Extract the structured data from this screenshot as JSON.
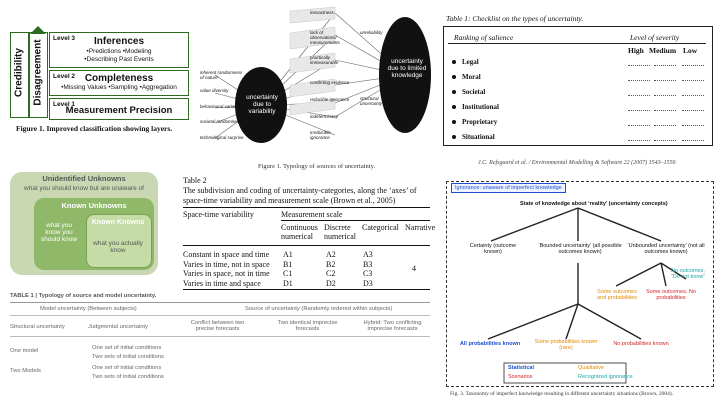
{
  "panel_layers": {
    "credibility": "Credibility",
    "disagreement": "Disagreement",
    "levels": [
      {
        "tag": "Level 3",
        "title": "Inferences",
        "items": "•Predictions  •Modeling",
        "items2": "•Describing Past Events"
      },
      {
        "tag": "Level 2",
        "title": "Completeness",
        "items": "•Missing Values  •Sampling  •Aggregation",
        "items2": ""
      },
      {
        "tag": "Level 1",
        "title": "Measurement Precision",
        "items": "",
        "items2": ""
      }
    ],
    "caption": "Figure 1. Improved classification showing layers."
  },
  "panel_typology": {
    "left_circle": "uncertainty due to variability",
    "right_circle": "uncertainty due to limited knowledge",
    "left_labels": [
      "inherent randomness of nature",
      "value diversity",
      "behavioural variability",
      "societal randomness",
      "technological surprise"
    ],
    "right_labels": [
      "inexactness",
      "lack of observations/ measurements",
      "practically immeasurable",
      "conflicting evidence",
      "reducible ignorance",
      "indeterminacy",
      "irreducible ignorance"
    ],
    "side_labels": [
      "unreliability",
      "structural uncertainty"
    ],
    "caption": "Figure 1. Typology of sources of uncertainty."
  },
  "panel_checklist": {
    "title": "Table 1: Checklist on the types of uncertainty.",
    "col_ranking": "Ranking of salience",
    "col_severity": "Level of severity",
    "severity_levels": [
      "High",
      "Medium",
      "Low"
    ],
    "rows": [
      "Legal",
      "Moral",
      "Societal",
      "Institutional",
      "Proprietary",
      "Situational"
    ],
    "citation": "J.C. Refsgaard et al. / Environmental Modelling & Software 22 (2007) 1543–1556"
  },
  "panel_unknowns": {
    "outer_title": "Unidentified Unknowns",
    "outer_sub": "what you should know but are unaware of",
    "mid_title": "Known Unknowns",
    "mid_sub": "what you know you should know",
    "inner_title": "Known Knowns",
    "inner_sub": "what you actually know"
  },
  "panel_table2": {
    "title": "Table 2",
    "caption_line1": "The subdivision and coding of uncertainty-categories, along the ‘axes’ of",
    "caption_line2": "space-time variability and measurement scale (Brown et al., 2005)",
    "col_header_1": "Space-time variability",
    "col_header_2": "Measurement scale",
    "sub_headers": [
      "Continuous numerical",
      "Discrete numerical",
      "Categorical",
      "Narrative"
    ],
    "rows": [
      {
        "label": "Constant in space and time",
        "codes": [
          "A1",
          "A2",
          "A3"
        ]
      },
      {
        "label": "Varies in time, not in space",
        "codes": [
          "B1",
          "B2",
          "B3"
        ]
      },
      {
        "label": "Varies in space, not in time",
        "codes": [
          "C1",
          "C2",
          "C3"
        ]
      },
      {
        "label": "Varies in time and space",
        "codes": [
          "D1",
          "D2",
          "D3"
        ]
      }
    ],
    "narrative_code": "4"
  },
  "panel_table1": {
    "title": "TABLE 1 | Typology of source and model uncertainty.",
    "header_left": "Model uncertainty (Between subjects)",
    "header_right": "Source of uncertainty (Randomly ordered within subjects)",
    "cols": [
      "Structural uncertainty",
      "Judgmental uncertainty",
      "Conflict between two precise forecasts",
      "Two identical imprecise forecasts",
      "Hybrid: Two conflicting imprecise forecasts"
    ],
    "rows": [
      {
        "label": "One model",
        "cells": [
          "One set of initial conditions",
          "Two sets of initial conditions"
        ]
      },
      {
        "label": "Two Models",
        "cells": [
          "One set of initial conditions",
          "Two sets of initial conditions"
        ]
      }
    ]
  },
  "panel_taxonomy": {
    "ignorance": "Ignorance: unaware of imperfect knowledge",
    "root": "State of knowledge about ‘reality’ (uncertainty concepts)",
    "level1": [
      "Certainty (outcome known)",
      "‘Bounded uncertainty’ (all possible outcomes known)",
      "‘Unbounded uncertainty’ (not all outcomes known)"
    ],
    "unbounded_children": [
      "Some outcomes and probabilities",
      "Some outcomes, No probabilities",
      "No outcomes, “Do not know”"
    ],
    "bounded_children": [
      "All probabilities known",
      "Some probabilities known (rare)",
      "No probabilities known"
    ],
    "legend": [
      "Statistical",
      "Qualitative",
      "Scenarios",
      "Recognized ignorance"
    ],
    "caption": "Fig. 3. Taxonomy of imperfect knowledge resulting in different uncertainty situations (Brown, 2004)."
  }
}
